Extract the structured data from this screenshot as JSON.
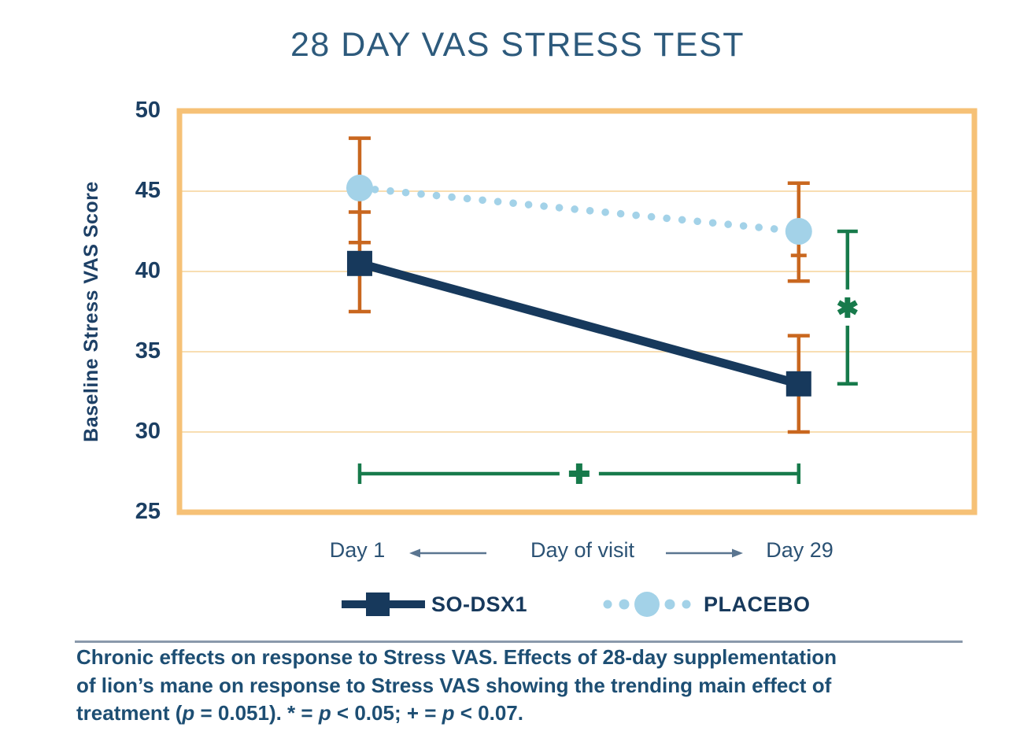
{
  "title": "28 DAY VAS STRESS TEST",
  "y_axis": {
    "label": "Baseline Stress VAS Score",
    "ticks": [
      50,
      45,
      40,
      35,
      30,
      25
    ],
    "min": 25,
    "max": 50
  },
  "x_axis": {
    "label": "Day of visit",
    "categories": [
      "Day 1",
      "Day 29"
    ]
  },
  "legend": {
    "items": [
      {
        "label": "SO-DSX1"
      },
      {
        "label": "PLACEBO"
      }
    ]
  },
  "chart_data": {
    "type": "line",
    "title": "28 DAY VAS STRESS TEST",
    "xlabel": "Day of visit",
    "ylabel": "Baseline Stress VAS Score",
    "ylim": [
      25,
      50
    ],
    "grid": true,
    "legend_position": "bottom",
    "categories": [
      "Day 1",
      "Day 29"
    ],
    "series": [
      {
        "name": "SO-DSX1",
        "values": [
          40.5,
          33
        ],
        "error_low": [
          37.5,
          30
        ],
        "error_high": [
          43.7,
          36
        ],
        "marker": "square",
        "line_style": "solid",
        "color": "#17395c"
      },
      {
        "name": "PLACEBO",
        "values": [
          45.2,
          42.5
        ],
        "error_low": [
          41.8,
          39.4
        ],
        "error_high": [
          48.3,
          45.5
        ],
        "extra_error_ticks": [
          {
            "category": "Day 29",
            "value": 41.0
          }
        ],
        "marker": "circle",
        "line_style": "dotted",
        "color": "#a3d2e8"
      }
    ],
    "error_bar_color": "#c9671f",
    "significance": {
      "vertical_bracket": {
        "category": "Day 29",
        "from": 42.5,
        "to": 33,
        "label": "*",
        "meaning": "p < 0.05"
      },
      "horizontal_bracket": {
        "from_category": "Day 1",
        "to_category": "Day 29",
        "at_value": 27.4,
        "label": "+",
        "meaning": "p < 0.07"
      }
    }
  },
  "caption": {
    "lines": [
      "Chronic effects on response to Stress VAS. Effects of 28-day supplementation",
      "of lion’s mane on response to Stress VAS showing the trending main effect of",
      "treatment (p = 0.051). * = p < 0.05; + = p < 0.07."
    ]
  },
  "colors": {
    "navy": "#17395c",
    "light_blue": "#a3d2e8",
    "error_orange": "#c9671f",
    "green": "#177a4b",
    "box_border": "#f6c176",
    "gridline": "#f8deb2",
    "title_text": "#2d5a7c",
    "axis_text": "#1c3f63",
    "caption_text": "#1d4e73",
    "arrow": "#5a7590",
    "divider": "#8a99ab"
  }
}
